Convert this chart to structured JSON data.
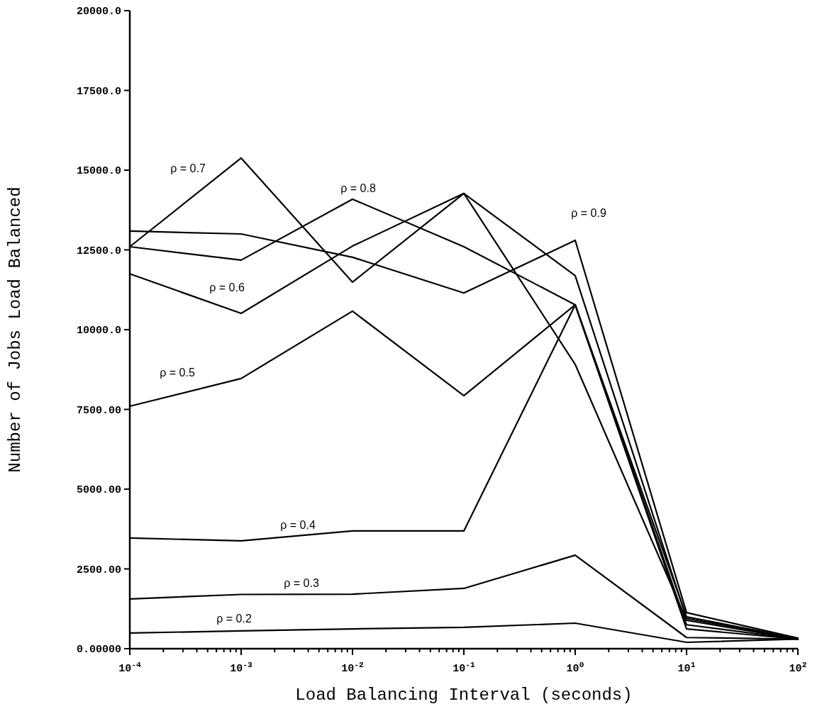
{
  "chart_data": {
    "type": "line",
    "xlabel": "Load Balancing Interval (seconds)",
    "ylabel": "Number of Jobs Load Balanced",
    "log": "x",
    "grid": false,
    "marker": "none",
    "line_style": "solid",
    "x": [
      0.0001,
      0.001,
      0.01,
      0.1,
      1,
      10,
      100
    ],
    "series": [
      {
        "name": "ρ = 0.2",
        "color": "#000000",
        "values": [
          490,
          560,
          620,
          670,
          800,
          200,
          300
        ]
      },
      {
        "name": "ρ = 0.3",
        "color": "#000000",
        "values": [
          1560,
          1700,
          1710,
          1890,
          2930,
          350,
          300
        ]
      },
      {
        "name": "ρ = 0.4",
        "color": "#000000",
        "values": [
          3470,
          3380,
          3690,
          3690,
          10780,
          620,
          300
        ]
      },
      {
        "name": "ρ = 0.5",
        "color": "#000000",
        "values": [
          7600,
          8470,
          10580,
          7930,
          10780,
          750,
          300
        ]
      },
      {
        "name": "ρ = 0.6",
        "color": "#000000",
        "values": [
          11750,
          10510,
          12620,
          14270,
          11690,
          950,
          320
        ]
      },
      {
        "name": "ρ = 0.7",
        "color": "#000000",
        "values": [
          12600,
          15380,
          11490,
          14270,
          8910,
          890,
          300
        ]
      },
      {
        "name": "ρ = 0.8",
        "color": "#000000",
        "values": [
          12600,
          12180,
          14090,
          12600,
          10780,
          1000,
          320
        ]
      },
      {
        "name": "ρ = 0.9",
        "color": "#000000",
        "values": [
          13090,
          13000,
          12270,
          11150,
          12800,
          1130,
          330
        ]
      }
    ],
    "xlim": [
      0.0001,
      100
    ],
    "xticks": [
      {
        "value": 0.0001,
        "label": "10$^{-4}$"
      },
      {
        "value": 0.0002,
        "label": null
      },
      {
        "value": 0.0003,
        "label": null
      },
      {
        "value": 0.0004,
        "label": null
      },
      {
        "value": 0.0005,
        "label": null
      },
      {
        "value": 0.0006,
        "label": null
      },
      {
        "value": 0.0007,
        "label": null
      },
      {
        "value": 0.0008,
        "label": null
      },
      {
        "value": 0.0009,
        "label": null
      },
      {
        "value": 0.001,
        "label": "10$^{-3}$"
      },
      {
        "value": 0.002,
        "label": null
      },
      {
        "value": 0.003,
        "label": null
      },
      {
        "value": 0.004,
        "label": null
      },
      {
        "value": 0.005,
        "label": null
      },
      {
        "value": 0.006,
        "label": null
      },
      {
        "value": 0.007,
        "label": null
      },
      {
        "value": 0.008,
        "label": null
      },
      {
        "value": 0.009,
        "label": null
      },
      {
        "value": 0.01,
        "label": "10$^{-2}$"
      },
      {
        "value": 0.02,
        "label": null
      },
      {
        "value": 0.03,
        "label": null
      },
      {
        "value": 0.04,
        "label": null
      },
      {
        "value": 0.05,
        "label": null
      },
      {
        "value": 0.06,
        "label": null
      },
      {
        "value": 0.07,
        "label": null
      },
      {
        "value": 0.08,
        "label": null
      },
      {
        "value": 0.09,
        "label": null
      },
      {
        "value": 0.1,
        "label": "10$^{-1}$"
      },
      {
        "value": 0.2,
        "label": null
      },
      {
        "value": 0.3,
        "label": null
      },
      {
        "value": 0.4,
        "label": null
      },
      {
        "value": 0.5,
        "label": null
      },
      {
        "value": 0.6,
        "label": null
      },
      {
        "value": 0.7,
        "label": null
      },
      {
        "value": 0.8,
        "label": null
      },
      {
        "value": 0.9,
        "label": null
      },
      {
        "value": 1,
        "label": "10$^{0}$"
      },
      {
        "value": 2,
        "label": null
      },
      {
        "value": 3,
        "label": null
      },
      {
        "value": 4,
        "label": null
      },
      {
        "value": 5,
        "label": null
      },
      {
        "value": 6,
        "label": null
      },
      {
        "value": 7,
        "label": null
      },
      {
        "value": 8,
        "label": null
      },
      {
        "value": 9,
        "label": null
      },
      {
        "value": 10,
        "label": "10$^{1}$"
      },
      {
        "value": 20,
        "label": null
      },
      {
        "value": 30,
        "label": null
      },
      {
        "value": 40,
        "label": null
      },
      {
        "value": 50,
        "label": null
      },
      {
        "value": 60,
        "label": null
      },
      {
        "value": 70,
        "label": null
      },
      {
        "value": 80,
        "label": null
      },
      {
        "value": 90,
        "label": null
      },
      {
        "value": 100,
        "label": "10$^{2}$"
      }
    ],
    "ylim": [
      0,
      20000
    ],
    "yticks": [
      {
        "value": 0,
        "label": "0.00000"
      },
      {
        "value": 2500,
        "label": "2500.00"
      },
      {
        "value": 5000,
        "label": "5000.00"
      },
      {
        "value": 7500,
        "label": "7500.00"
      },
      {
        "value": 10000,
        "label": "10000.0"
      },
      {
        "value": 12500,
        "label": "12500.0"
      },
      {
        "value": 15000,
        "label": "15000.0"
      },
      {
        "value": 17500,
        "label": "17500.0"
      },
      {
        "value": 20000,
        "label": "20000.0"
      }
    ]
  }
}
